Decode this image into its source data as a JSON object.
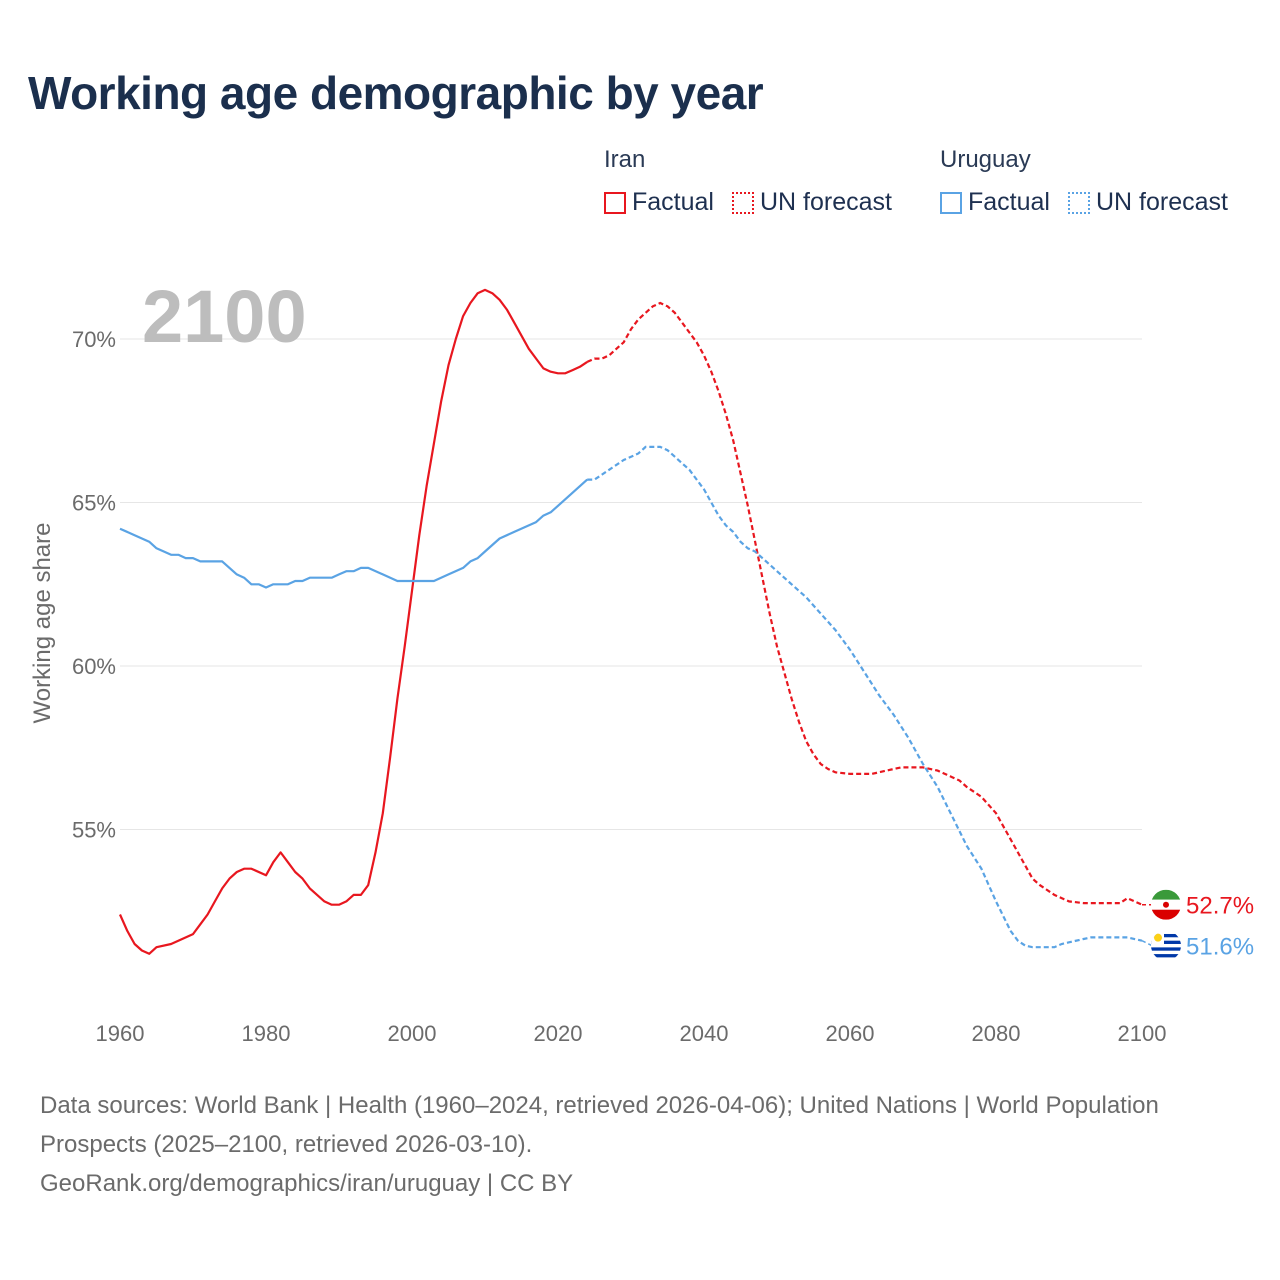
{
  "title": "Working age demographic by year",
  "legend": {
    "groups": [
      {
        "name": "Iran",
        "factual_label": "Factual",
        "forecast_label": "UN forecast",
        "color": "#e8171f"
      },
      {
        "name": "Uruguay",
        "factual_label": "Factual",
        "forecast_label": "UN forecast",
        "color": "#5aa3e4"
      }
    ]
  },
  "chart_data": {
    "type": "line",
    "title": "Working age demographic by year",
    "year_label": "2100",
    "xlabel": "",
    "ylabel": "Working age share",
    "xlim": [
      1960,
      2100
    ],
    "ylim": [
      50,
      72.5
    ],
    "x_ticks": [
      1960,
      1980,
      2000,
      2020,
      2040,
      2060,
      2080,
      2100
    ],
    "y_ticks": [
      55,
      60,
      65,
      70
    ],
    "y_tick_labels": [
      "55%",
      "60%",
      "65%",
      "70%"
    ],
    "grid": true,
    "forecast_start_year": 2025,
    "series": [
      {
        "name": "Iran",
        "color": "#e8171f",
        "end_label": "52.7%",
        "points": [
          [
            1960,
            52.4
          ],
          [
            1961,
            51.9
          ],
          [
            1962,
            51.5
          ],
          [
            1963,
            51.3
          ],
          [
            1964,
            51.2
          ],
          [
            1965,
            51.4
          ],
          [
            1967,
            51.5
          ],
          [
            1970,
            51.8
          ],
          [
            1971,
            52.1
          ],
          [
            1972,
            52.4
          ],
          [
            1973,
            52.8
          ],
          [
            1974,
            53.2
          ],
          [
            1975,
            53.5
          ],
          [
            1976,
            53.7
          ],
          [
            1977,
            53.8
          ],
          [
            1978,
            53.8
          ],
          [
            1980,
            53.6
          ],
          [
            1981,
            54.0
          ],
          [
            1982,
            54.3
          ],
          [
            1983,
            54.0
          ],
          [
            1984,
            53.7
          ],
          [
            1985,
            53.5
          ],
          [
            1986,
            53.2
          ],
          [
            1987,
            53.0
          ],
          [
            1988,
            52.8
          ],
          [
            1989,
            52.7
          ],
          [
            1990,
            52.7
          ],
          [
            1991,
            52.8
          ],
          [
            1992,
            53.0
          ],
          [
            1993,
            53.0
          ],
          [
            1994,
            53.3
          ],
          [
            1995,
            54.3
          ],
          [
            1996,
            55.5
          ],
          [
            1997,
            57.2
          ],
          [
            1998,
            59.0
          ],
          [
            1999,
            60.6
          ],
          [
            2000,
            62.3
          ],
          [
            2001,
            64.0
          ],
          [
            2002,
            65.5
          ],
          [
            2003,
            66.8
          ],
          [
            2004,
            68.1
          ],
          [
            2005,
            69.2
          ],
          [
            2006,
            70.0
          ],
          [
            2007,
            70.7
          ],
          [
            2008,
            71.1
          ],
          [
            2009,
            71.4
          ],
          [
            2010,
            71.5
          ],
          [
            2011,
            71.4
          ],
          [
            2012,
            71.2
          ],
          [
            2013,
            70.9
          ],
          [
            2014,
            70.5
          ],
          [
            2015,
            70.1
          ],
          [
            2016,
            69.7
          ],
          [
            2017,
            69.4
          ],
          [
            2018,
            69.1
          ],
          [
            2019,
            69.0
          ],
          [
            2020,
            68.95
          ],
          [
            2021,
            68.95
          ],
          [
            2022,
            69.05
          ],
          [
            2023,
            69.15
          ],
          [
            2024,
            69.3
          ],
          [
            2025,
            69.4
          ],
          [
            2026,
            69.4
          ],
          [
            2027,
            69.5
          ],
          [
            2028,
            69.7
          ],
          [
            2029,
            69.9
          ],
          [
            2030,
            70.3
          ],
          [
            2031,
            70.6
          ],
          [
            2032,
            70.8
          ],
          [
            2033,
            71.0
          ],
          [
            2034,
            71.1
          ],
          [
            2035,
            71.0
          ],
          [
            2036,
            70.8
          ],
          [
            2037,
            70.5
          ],
          [
            2038,
            70.2
          ],
          [
            2039,
            69.9
          ],
          [
            2040,
            69.5
          ],
          [
            2041,
            69.0
          ],
          [
            2042,
            68.4
          ],
          [
            2043,
            67.7
          ],
          [
            2044,
            66.9
          ],
          [
            2045,
            65.9
          ],
          [
            2046,
            64.9
          ],
          [
            2047,
            63.8
          ],
          [
            2048,
            62.7
          ],
          [
            2049,
            61.6
          ],
          [
            2050,
            60.6
          ],
          [
            2051,
            59.8
          ],
          [
            2052,
            59.0
          ],
          [
            2053,
            58.3
          ],
          [
            2054,
            57.7
          ],
          [
            2055,
            57.3
          ],
          [
            2056,
            57.0
          ],
          [
            2057,
            56.85
          ],
          [
            2058,
            56.75
          ],
          [
            2060,
            56.7
          ],
          [
            2063,
            56.7
          ],
          [
            2065,
            56.8
          ],
          [
            2067,
            56.9
          ],
          [
            2070,
            56.9
          ],
          [
            2072,
            56.8
          ],
          [
            2074,
            56.6
          ],
          [
            2075,
            56.5
          ],
          [
            2076,
            56.3
          ],
          [
            2078,
            56.0
          ],
          [
            2080,
            55.5
          ],
          [
            2082,
            54.7
          ],
          [
            2084,
            53.9
          ],
          [
            2085,
            53.5
          ],
          [
            2086,
            53.3
          ],
          [
            2088,
            53.0
          ],
          [
            2090,
            52.8
          ],
          [
            2092,
            52.75
          ],
          [
            2095,
            52.75
          ],
          [
            2097,
            52.75
          ],
          [
            2098,
            52.9
          ],
          [
            2100,
            52.7
          ]
        ]
      },
      {
        "name": "Uruguay",
        "color": "#5aa3e4",
        "end_label": "51.6%",
        "points": [
          [
            1960,
            64.2
          ],
          [
            1962,
            64.0
          ],
          [
            1964,
            63.8
          ],
          [
            1965,
            63.6
          ],
          [
            1967,
            63.4
          ],
          [
            1968,
            63.4
          ],
          [
            1969,
            63.3
          ],
          [
            1970,
            63.3
          ],
          [
            1971,
            63.2
          ],
          [
            1974,
            63.2
          ],
          [
            1975,
            63.0
          ],
          [
            1976,
            62.8
          ],
          [
            1977,
            62.7
          ],
          [
            1978,
            62.5
          ],
          [
            1979,
            62.5
          ],
          [
            1980,
            62.4
          ],
          [
            1981,
            62.5
          ],
          [
            1983,
            62.5
          ],
          [
            1984,
            62.6
          ],
          [
            1985,
            62.6
          ],
          [
            1986,
            62.7
          ],
          [
            1989,
            62.7
          ],
          [
            1990,
            62.8
          ],
          [
            1991,
            62.9
          ],
          [
            1992,
            62.9
          ],
          [
            1993,
            63.0
          ],
          [
            1994,
            63.0
          ],
          [
            1996,
            62.8
          ],
          [
            1998,
            62.6
          ],
          [
            2003,
            62.6
          ],
          [
            2005,
            62.8
          ],
          [
            2007,
            63.0
          ],
          [
            2008,
            63.2
          ],
          [
            2009,
            63.3
          ],
          [
            2010,
            63.5
          ],
          [
            2011,
            63.7
          ],
          [
            2012,
            63.9
          ],
          [
            2014,
            64.1
          ],
          [
            2016,
            64.3
          ],
          [
            2017,
            64.4
          ],
          [
            2018,
            64.6
          ],
          [
            2019,
            64.7
          ],
          [
            2020,
            64.9
          ],
          [
            2022,
            65.3
          ],
          [
            2024,
            65.7
          ],
          [
            2025,
            65.7
          ],
          [
            2027,
            66.0
          ],
          [
            2029,
            66.3
          ],
          [
            2031,
            66.5
          ],
          [
            2032,
            66.7
          ],
          [
            2034,
            66.7
          ],
          [
            2035,
            66.6
          ],
          [
            2036,
            66.4
          ],
          [
            2037,
            66.2
          ],
          [
            2038,
            66.0
          ],
          [
            2039,
            65.7
          ],
          [
            2040,
            65.4
          ],
          [
            2041,
            65.0
          ],
          [
            2042,
            64.6
          ],
          [
            2043,
            64.3
          ],
          [
            2044,
            64.1
          ],
          [
            2045,
            63.8
          ],
          [
            2046,
            63.6
          ],
          [
            2047,
            63.5
          ],
          [
            2048,
            63.3
          ],
          [
            2050,
            62.9
          ],
          [
            2052,
            62.5
          ],
          [
            2054,
            62.1
          ],
          [
            2056,
            61.6
          ],
          [
            2058,
            61.1
          ],
          [
            2060,
            60.5
          ],
          [
            2062,
            59.8
          ],
          [
            2064,
            59.1
          ],
          [
            2066,
            58.5
          ],
          [
            2068,
            57.8
          ],
          [
            2070,
            57.0
          ],
          [
            2072,
            56.3
          ],
          [
            2074,
            55.4
          ],
          [
            2076,
            54.5
          ],
          [
            2078,
            53.8
          ],
          [
            2080,
            52.8
          ],
          [
            2082,
            51.9
          ],
          [
            2083,
            51.6
          ],
          [
            2084,
            51.45
          ],
          [
            2085,
            51.4
          ],
          [
            2088,
            51.4
          ],
          [
            2089,
            51.5
          ],
          [
            2090,
            51.55
          ],
          [
            2092,
            51.65
          ],
          [
            2093,
            51.7
          ],
          [
            2098,
            51.7
          ],
          [
            2100,
            51.6
          ]
        ]
      }
    ]
  },
  "footer": {
    "sources": "Data sources: World Bank | Health (1960–2024, retrieved 2026-04-06); United Nations | World Population Prospects (2025–2100, retrieved 2026-03-10).",
    "attribution": "GeoRank.org/demographics/iran/uruguay | CC BY"
  }
}
